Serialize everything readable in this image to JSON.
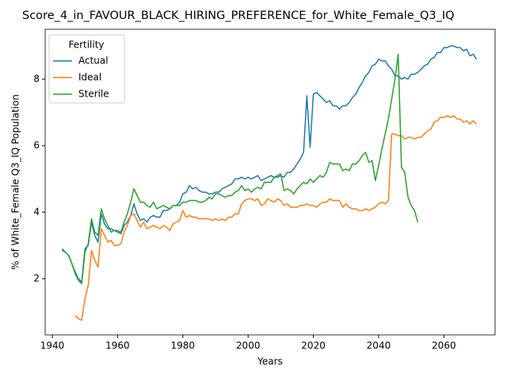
{
  "chart_data": {
    "type": "line",
    "title": "Score_4_in_FAVOUR_BLACK_HIRING_PREFERENCE_for_White_Female_Q3_IQ",
    "xlabel": "Years",
    "ylabel": "% of White_Female Q3_IQ Population",
    "legend_title": "Fertility",
    "legend": "upper left",
    "grid": false,
    "xlim": [
      1937.8,
      2075.7
    ],
    "ylim": [
      0.31,
      9.5
    ],
    "xticks": [
      1940,
      1960,
      1980,
      2000,
      2020,
      2040,
      2060
    ],
    "yticks": [
      2,
      4,
      6,
      8
    ],
    "x": [
      1943,
      1944,
      1945,
      1946,
      1947,
      1948,
      1949,
      1950,
      1951,
      1952,
      1953,
      1954,
      1955,
      1956,
      1957,
      1958,
      1959,
      1960,
      1961,
      1962,
      1963,
      1964,
      1965,
      1966,
      1967,
      1968,
      1969,
      1970,
      1971,
      1972,
      1973,
      1974,
      1975,
      1976,
      1977,
      1978,
      1979,
      1980,
      1981,
      1982,
      1983,
      1984,
      1985,
      1986,
      1987,
      1988,
      1989,
      1990,
      1991,
      1992,
      1993,
      1994,
      1995,
      1996,
      1997,
      1998,
      1999,
      2000,
      2001,
      2002,
      2003,
      2004,
      2005,
      2006,
      2007,
      2008,
      2009,
      2010,
      2011,
      2012,
      2013,
      2014,
      2015,
      2016,
      2017,
      2018,
      2019,
      2020,
      2021,
      2022,
      2023,
      2024,
      2025,
      2026,
      2027,
      2028,
      2029,
      2030,
      2031,
      2032,
      2033,
      2034,
      2035,
      2036,
      2037,
      2038,
      2039,
      2040,
      2041,
      2042,
      2043,
      2044,
      2045,
      2046,
      2047,
      2048,
      2049,
      2050,
      2051,
      2052,
      2053,
      2054,
      2055,
      2056,
      2057,
      2058,
      2059,
      2060,
      2061,
      2062,
      2063,
      2064,
      2065,
      2066,
      2067,
      2068,
      2069,
      2070
    ],
    "series": [
      {
        "name": "Actual",
        "color": "#1f77b4",
        "values": [
          2.9,
          2.8,
          2.7,
          2.45,
          2.2,
          2.0,
          1.9,
          2.9,
          3.0,
          3.7,
          3.3,
          3.1,
          3.95,
          3.65,
          3.5,
          3.5,
          3.45,
          3.4,
          3.35,
          3.6,
          3.7,
          3.9,
          4.25,
          3.95,
          3.75,
          3.8,
          3.7,
          3.85,
          3.9,
          3.85,
          3.85,
          4.05,
          4.05,
          4.1,
          4.2,
          4.2,
          4.3,
          4.55,
          4.6,
          4.8,
          4.7,
          4.75,
          4.65,
          4.6,
          4.6,
          4.55,
          4.55,
          4.6,
          4.6,
          4.7,
          4.75,
          4.8,
          4.85,
          5.0,
          5.0,
          5.05,
          5.0,
          5.05,
          5.0,
          5.05,
          5.1,
          4.95,
          5.0,
          5.05,
          5.1,
          5.05,
          5.05,
          5.1,
          5.05,
          5.2,
          5.2,
          5.3,
          5.45,
          5.6,
          5.8,
          7.5,
          5.95,
          7.55,
          7.6,
          7.5,
          7.4,
          7.3,
          7.35,
          7.2,
          7.2,
          7.1,
          7.2,
          7.2,
          7.3,
          7.45,
          7.55,
          7.75,
          7.9,
          8.1,
          8.2,
          8.4,
          8.45,
          8.6,
          8.55,
          8.55,
          8.4,
          8.3,
          8.1,
          8.1,
          8.0,
          8.05,
          8.0,
          8.15,
          8.15,
          8.2,
          8.3,
          8.4,
          8.45,
          8.6,
          8.65,
          8.8,
          8.8,
          8.95,
          8.95,
          9.0,
          9.0,
          8.95,
          8.95,
          8.85,
          8.9,
          8.7,
          8.75,
          8.6
        ]
      },
      {
        "name": "Ideal",
        "color": "#ff7f0e",
        "values": [
          null,
          null,
          null,
          null,
          0.9,
          0.8,
          0.75,
          1.4,
          1.8,
          2.85,
          2.55,
          2.35,
          3.5,
          3.3,
          3.1,
          3.15,
          3.0,
          3.0,
          3.05,
          3.4,
          3.6,
          3.9,
          3.95,
          3.75,
          3.55,
          3.7,
          3.5,
          3.55,
          3.6,
          3.55,
          3.5,
          3.6,
          3.55,
          3.45,
          3.65,
          3.7,
          3.75,
          4.05,
          3.85,
          3.9,
          3.85,
          3.85,
          3.8,
          3.8,
          3.8,
          3.8,
          3.75,
          3.8,
          3.75,
          3.8,
          3.75,
          3.85,
          3.85,
          3.95,
          3.95,
          4.25,
          4.35,
          4.4,
          4.4,
          4.35,
          4.4,
          4.2,
          4.25,
          4.4,
          4.35,
          4.3,
          4.4,
          4.35,
          4.2,
          4.25,
          4.15,
          4.15,
          4.15,
          4.2,
          4.2,
          4.25,
          4.2,
          4.2,
          4.15,
          4.25,
          4.3,
          4.3,
          4.4,
          4.35,
          4.35,
          4.35,
          4.15,
          4.25,
          4.15,
          4.1,
          4.1,
          4.05,
          4.05,
          4.1,
          4.05,
          4.1,
          4.15,
          4.25,
          4.3,
          4.25,
          4.35,
          6.35,
          6.35,
          6.3,
          6.3,
          6.2,
          6.25,
          6.25,
          6.2,
          6.25,
          6.25,
          6.35,
          6.45,
          6.5,
          6.7,
          6.75,
          6.85,
          6.85,
          6.9,
          6.85,
          6.9,
          6.8,
          6.8,
          6.7,
          6.75,
          6.65,
          6.75,
          6.65
        ]
      },
      {
        "name": "Sterile",
        "color": "#2ca02c",
        "values": [
          2.85,
          2.8,
          2.7,
          2.45,
          2.15,
          1.95,
          1.85,
          2.8,
          3.05,
          3.8,
          3.4,
          3.3,
          4.1,
          3.8,
          3.6,
          3.4,
          3.45,
          3.45,
          3.4,
          3.7,
          3.95,
          4.3,
          4.7,
          4.5,
          4.3,
          4.3,
          4.2,
          4.15,
          4.3,
          4.1,
          4.15,
          4.2,
          4.15,
          4.1,
          4.2,
          4.2,
          4.2,
          4.3,
          4.3,
          4.35,
          4.35,
          4.35,
          4.3,
          4.3,
          4.35,
          4.45,
          4.4,
          4.55,
          4.55,
          4.5,
          4.45,
          4.5,
          4.5,
          4.6,
          4.65,
          4.8,
          4.65,
          4.7,
          4.6,
          4.7,
          4.75,
          4.7,
          4.9,
          4.9,
          4.9,
          5.05,
          5.1,
          5.15,
          4.65,
          4.7,
          4.65,
          4.55,
          4.7,
          4.8,
          4.9,
          4.85,
          5.0,
          4.9,
          5.0,
          5.1,
          5.05,
          5.2,
          5.5,
          5.45,
          5.45,
          5.45,
          5.25,
          5.3,
          5.25,
          5.45,
          5.45,
          5.55,
          5.7,
          5.8,
          5.5,
          5.55,
          4.95,
          5.4,
          5.9,
          6.35,
          6.8,
          7.4,
          8.0,
          8.75,
          5.35,
          5.2,
          4.45,
          4.2,
          4.05,
          3.7,
          null,
          null,
          null,
          null,
          null,
          null,
          null,
          null,
          null,
          null,
          null,
          null,
          null,
          null,
          null,
          null,
          null,
          null
        ]
      }
    ]
  }
}
